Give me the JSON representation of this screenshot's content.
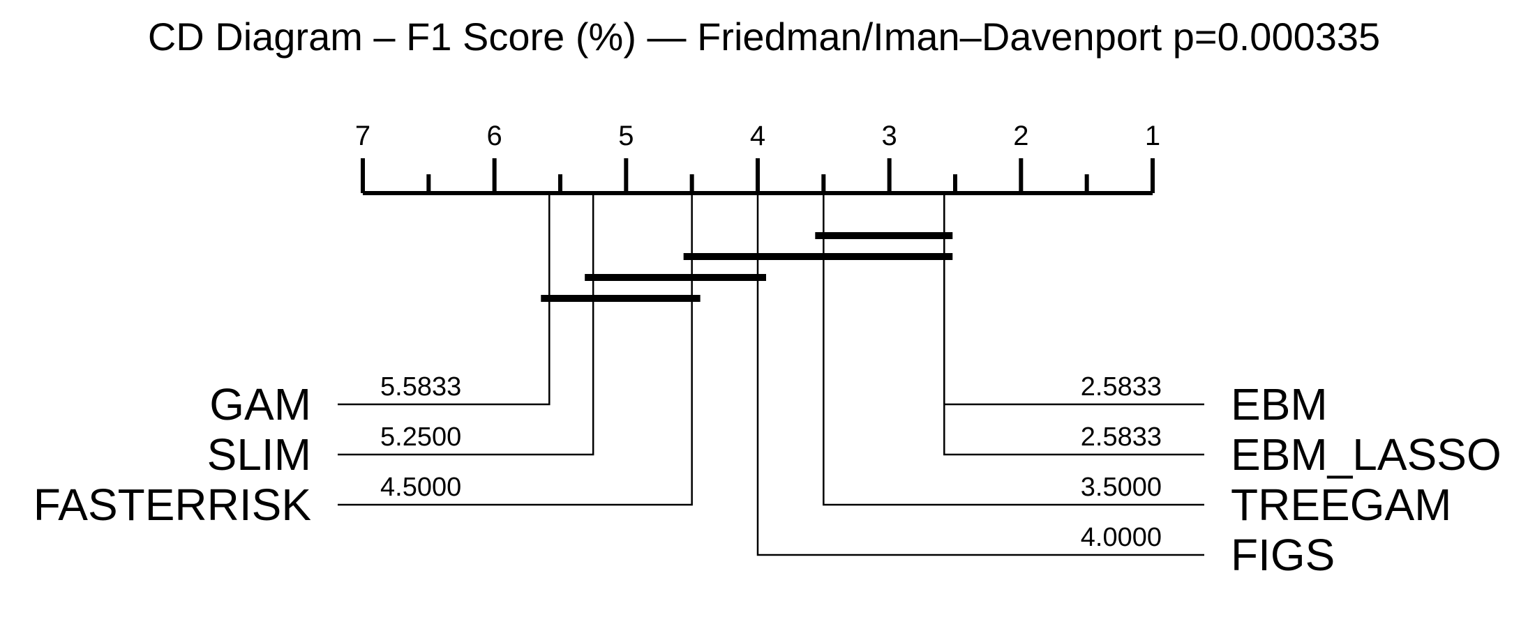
{
  "title": "CD Diagram – F1 Score (%) — Friedman/Iman–Davenport p=0.000335",
  "chart_data": {
    "type": "cd-diagram",
    "title": "CD Diagram – F1 Score (%) — Friedman/Iman–Davenport p=0.000335",
    "axis": {
      "min": 1,
      "max": 7,
      "reversed": true,
      "ticks": [
        7,
        6,
        5,
        4,
        3,
        2,
        1
      ],
      "tick_labels": [
        "7",
        "6",
        "5",
        "4",
        "3",
        "2",
        "1"
      ],
      "minor_ticks": [
        6.5,
        5.5,
        4.5,
        3.5,
        2.5,
        1.5
      ]
    },
    "methods_left": [
      {
        "name": "GAM",
        "rank": 5.5833,
        "rank_label": "5.5833"
      },
      {
        "name": "SLIM",
        "rank": 5.25,
        "rank_label": "5.2500"
      },
      {
        "name": "FASTERRISK",
        "rank": 4.5,
        "rank_label": "4.5000"
      }
    ],
    "methods_right": [
      {
        "name": "EBM",
        "rank": 2.5833,
        "rank_label": "2.5833"
      },
      {
        "name": "EBM_LASSO",
        "rank": 2.5833,
        "rank_label": "2.5833"
      },
      {
        "name": "TREEGAM",
        "rank": 3.5,
        "rank_label": "3.5000"
      },
      {
        "name": "FIGS",
        "rank": 4.0,
        "rank_label": "4.0000"
      }
    ],
    "cliques": [
      {
        "from": 2.5833,
        "to": 3.5
      },
      {
        "from": 2.5833,
        "to": 4.5
      },
      {
        "from": 4.0,
        "to": 5.25
      },
      {
        "from": 4.5,
        "to": 5.5833
      }
    ]
  }
}
